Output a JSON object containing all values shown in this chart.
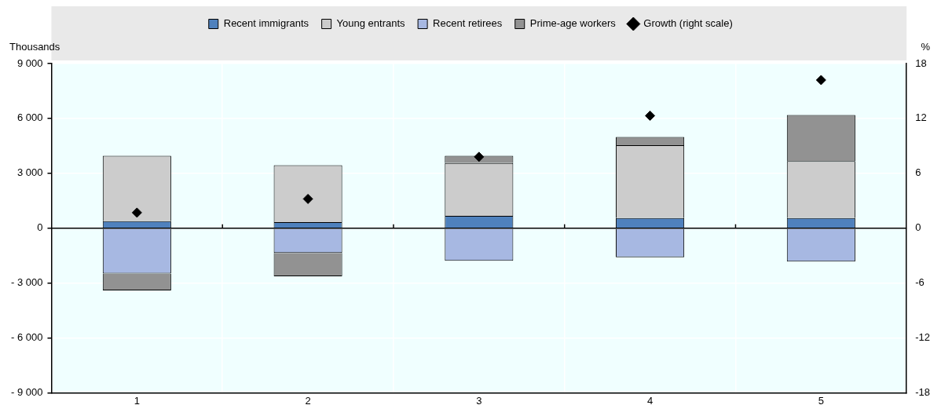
{
  "chart_data": {
    "type": "bar",
    "stacked": true,
    "categories": [
      "1",
      "2",
      "3",
      "4",
      "5"
    ],
    "ylabel": "Thousands",
    "y2label": "%",
    "ylim": [
      -9000,
      9000
    ],
    "yticks": [
      {
        "value": -9000,
        "label": "- 9 000"
      },
      {
        "value": -6000,
        "label": "- 6 000"
      },
      {
        "value": -3000,
        "label": "- 3 000"
      },
      0,
      {
        "value": 3000,
        "label": "3 000"
      },
      {
        "value": 6000,
        "label": "6 000"
      },
      {
        "value": 9000,
        "label": "9 000"
      }
    ],
    "y2lim": [
      -18,
      18
    ],
    "y2ticks": [
      -18,
      -12,
      -6,
      0,
      6,
      12,
      18
    ],
    "grid": true,
    "legend": "top",
    "series": [
      {
        "name": "Recent immigrants",
        "color": "#4f81bd",
        "values": [
          380,
          330,
          670,
          560,
          560
        ]
      },
      {
        "name": "Young entrants",
        "color": "#cccccc",
        "values": [
          3580,
          3110,
          2890,
          3980,
          3110
        ]
      },
      {
        "name": "Recent retirees",
        "color": "#a7b8e2",
        "values": [
          -2480,
          -1350,
          -1780,
          -1590,
          -1830
        ]
      },
      {
        "name": "Prime-age workers",
        "color": "#929292",
        "values": [
          -920,
          -1280,
          400,
          450,
          2520
        ]
      },
      {
        "name": "Growth (right scale)",
        "type": "scatter",
        "axis": "y2",
        "marker": "diamond",
        "color": "#000000",
        "values": [
          1.7,
          3.2,
          7.8,
          12.3,
          16.2
        ]
      }
    ]
  }
}
